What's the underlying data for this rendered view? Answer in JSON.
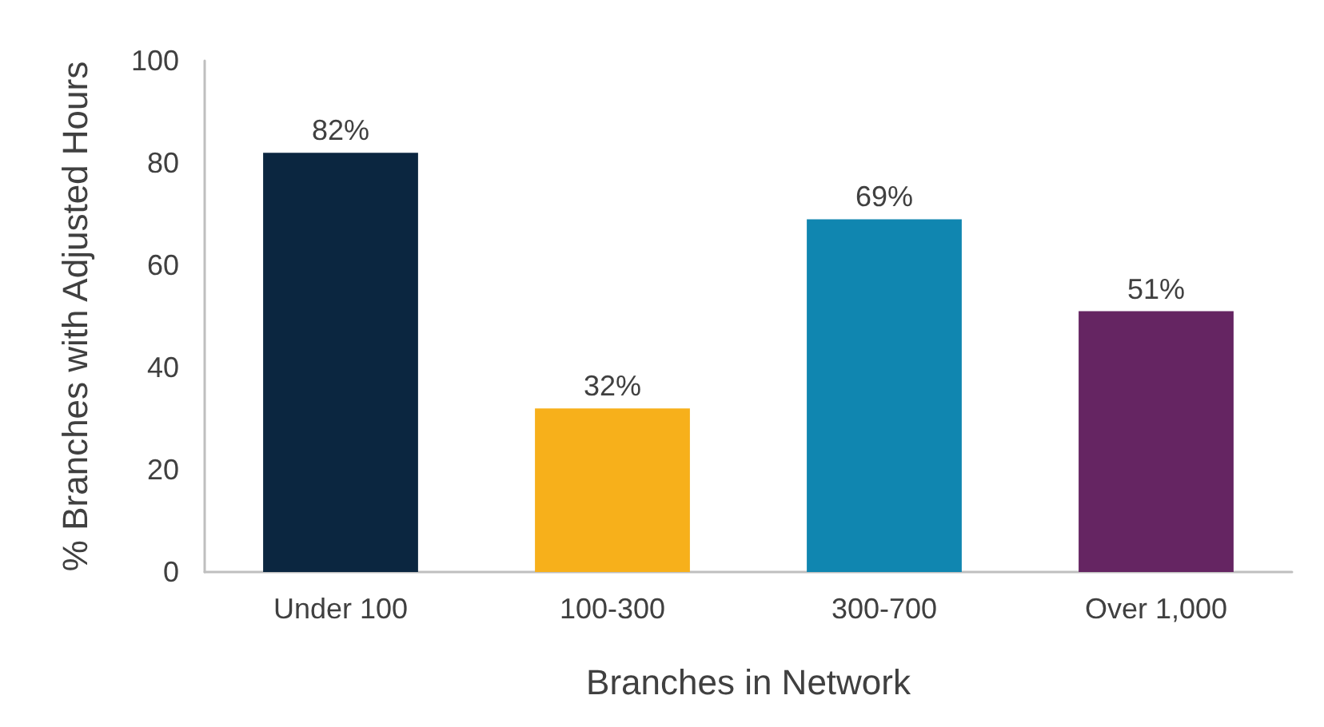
{
  "chart_data": {
    "type": "bar",
    "xlabel": "Branches in Network",
    "ylabel": "% Branches with Adjusted Hours",
    "categories": [
      "Under 100",
      "100-300",
      "300-700",
      "Over 1,000"
    ],
    "values": [
      82,
      32,
      69,
      51
    ],
    "colors": [
      "#0b2640",
      "#f7b01b",
      "#1086b0",
      "#652562"
    ],
    "value_labels": [
      "82%",
      "32%",
      "69%",
      "51%"
    ],
    "ylim": [
      0,
      100
    ],
    "yticks": [
      0,
      20,
      40,
      60,
      80,
      100
    ],
    "grid": false
  }
}
